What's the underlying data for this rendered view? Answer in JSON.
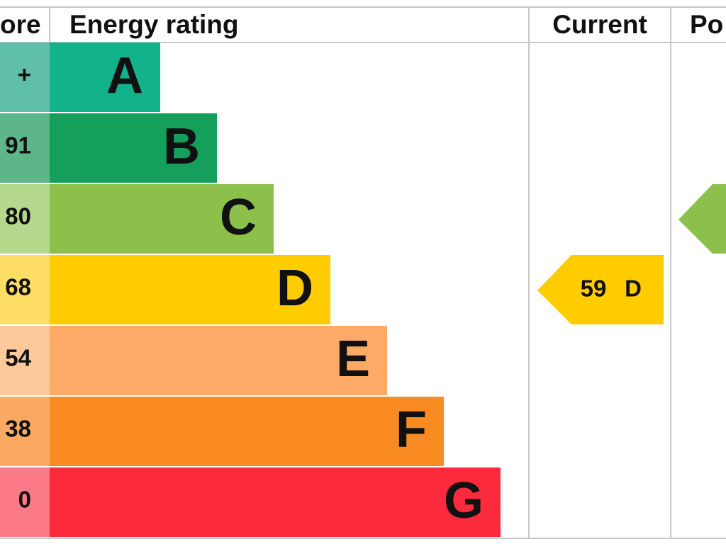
{
  "header": {
    "score": "ore",
    "rating": "Energy rating",
    "current": "Current",
    "potential": "Po"
  },
  "rows": [
    {
      "score": "+",
      "letter": "A"
    },
    {
      "score": "91",
      "letter": "B"
    },
    {
      "score": "80",
      "letter": "C"
    },
    {
      "score": "68",
      "letter": "D"
    },
    {
      "score": "54",
      "letter": "E"
    },
    {
      "score": "38",
      "letter": "F"
    },
    {
      "score": "0",
      "letter": "G"
    }
  ],
  "current": {
    "score": "59",
    "letter": "D"
  }
}
